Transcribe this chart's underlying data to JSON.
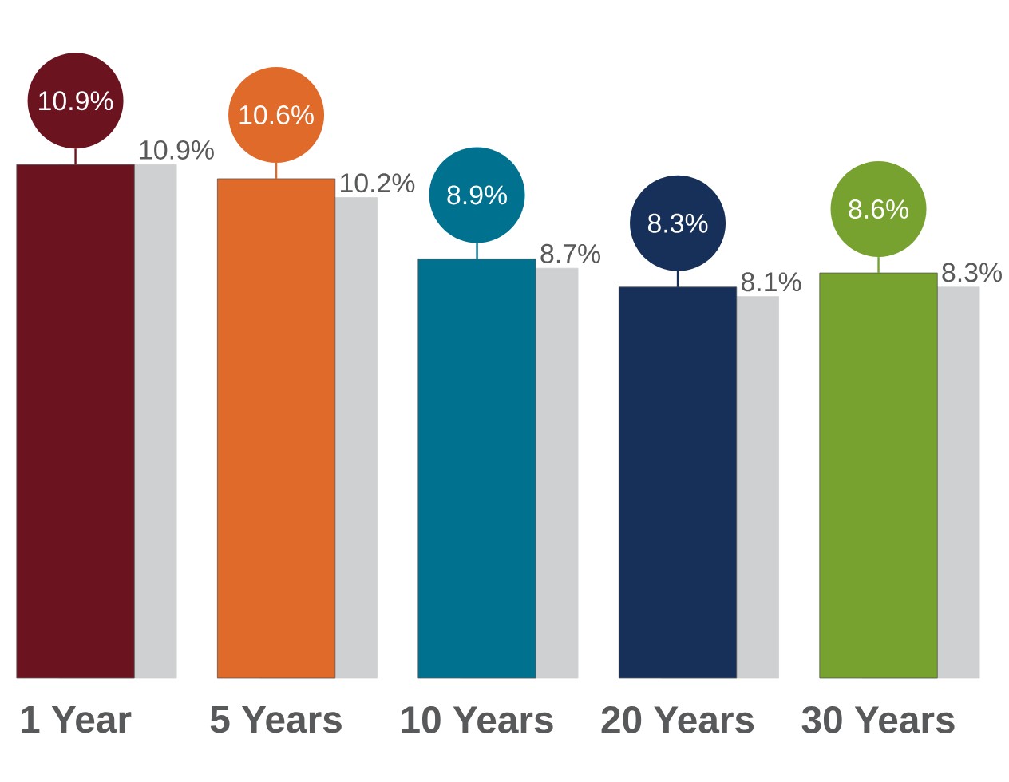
{
  "chart_data": {
    "type": "bar",
    "categories": [
      "1 Year",
      "5 Years",
      "10 Years",
      "20 Years",
      "30 Years"
    ],
    "tick_labels": "x",
    "series": [
      {
        "colors": [
          "#6b1420",
          "#e06a2a",
          "#00728f",
          "#16305a",
          "#78a22f"
        ],
        "values": [
          10.9,
          10.6,
          8.9,
          8.3,
          8.6
        ],
        "value_labels": [
          "10.9%",
          "10.6%",
          "8.9%",
          "8.3%",
          "8.6%"
        ]
      },
      {
        "color": "#cfd0d2",
        "values": [
          10.9,
          10.2,
          8.7,
          8.1,
          8.3
        ],
        "value_labels": [
          "10.9%",
          "10.2%",
          "8.7%",
          "8.1%",
          "8.3%"
        ]
      }
    ]
  }
}
